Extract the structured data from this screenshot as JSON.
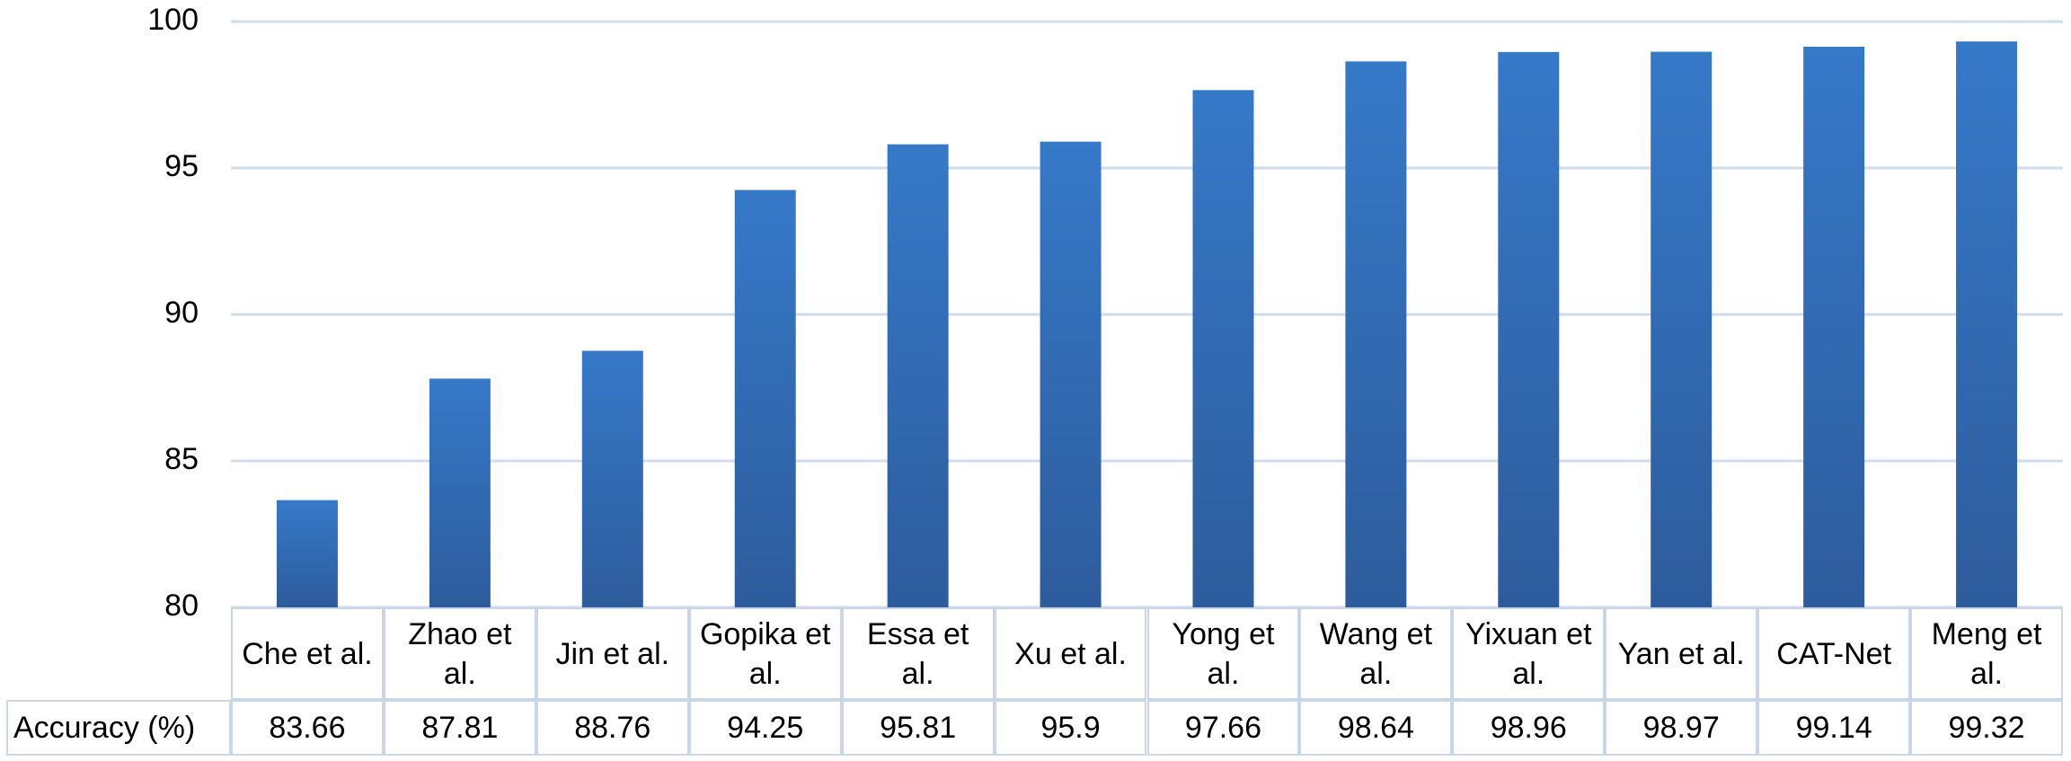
{
  "chart_data": {
    "type": "bar",
    "categories": [
      "Che et al.",
      "Zhao et al.",
      "Jin et al.",
      "Gopika et al.",
      "Essa et al.",
      "Xu et al.",
      "Yong et al.",
      "Wang et al.",
      "Yixuan et al.",
      "Yan et al.",
      "CAT-Net",
      "Meng et al."
    ],
    "series": [
      {
        "name": "Accuracy (%)",
        "color": "#3679c9",
        "values": [
          83.66,
          87.81,
          88.76,
          94.25,
          95.81,
          95.9,
          97.66,
          98.64,
          98.96,
          98.97,
          99.14,
          99.32
        ]
      }
    ],
    "ylim": [
      80,
      100
    ],
    "yticks": [
      80,
      85,
      90,
      95,
      100
    ],
    "grid": true
  }
}
